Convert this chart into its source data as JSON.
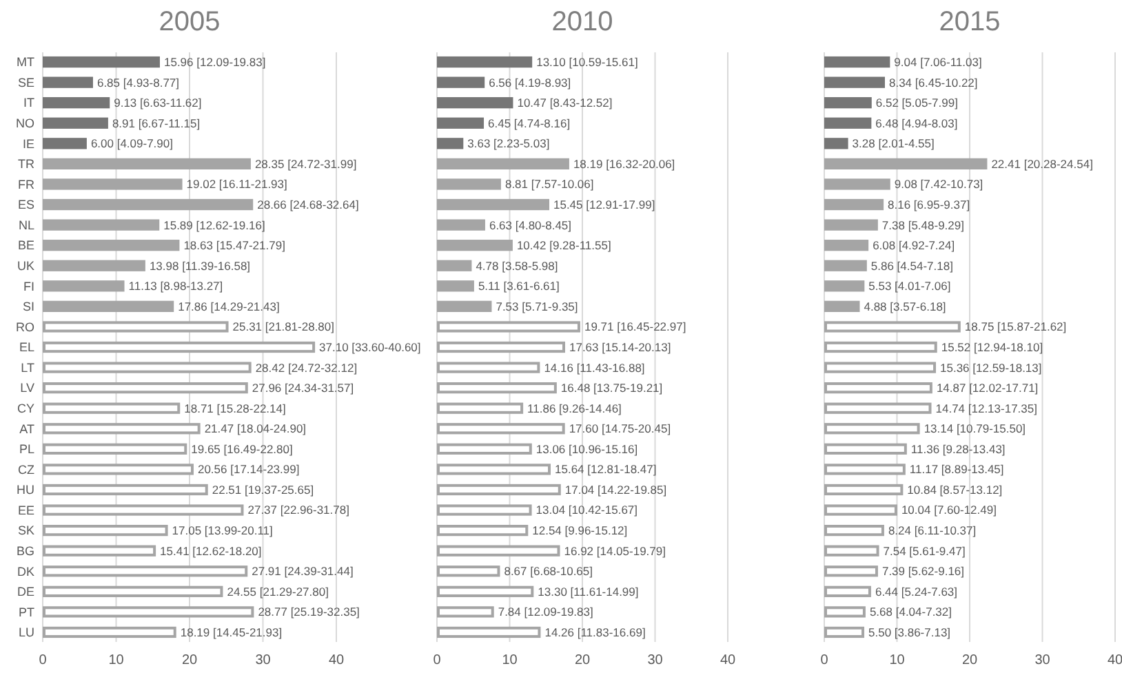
{
  "chart_data": [
    {
      "type": "bar",
      "title": "2005",
      "orientation": "horizontal",
      "grid": "x",
      "xlim": [
        0,
        40
      ],
      "xticks": [
        0,
        10,
        20,
        30,
        40
      ],
      "categories": [
        "MT",
        "SE",
        "IT",
        "NO",
        "IE",
        "TR",
        "FR",
        "ES",
        "NL",
        "BE",
        "UK",
        "FI",
        "SI",
        "RO",
        "EL",
        "LT",
        "LV",
        "CY",
        "AT",
        "PL",
        "CZ",
        "HU",
        "EE",
        "SK",
        "BG",
        "DK",
        "DE",
        "PT",
        "LU"
      ],
      "values": [
        15.96,
        6.85,
        9.13,
        8.91,
        6.0,
        28.35,
        19.02,
        28.66,
        15.89,
        18.63,
        13.98,
        11.13,
        17.86,
        25.31,
        37.1,
        28.42,
        27.96,
        18.71,
        21.47,
        19.65,
        20.56,
        22.51,
        27.37,
        17.05,
        15.41,
        27.91,
        24.55,
        28.77,
        18.19
      ],
      "value_labels": [
        "15.96 [12.09-19.83]",
        "6.85 [4.93-8.77]",
        "9.13 [6.63-11.62]",
        "8.91 [6.67-11.15]",
        "6.00 [4.09-7.90]",
        "28.35 [24.72-31.99]",
        "19.02 [16.11-21.93]",
        "28.66 [24.68-32.64]",
        "15.89 [12.62-19.16]",
        "18.63 [15.47-21.79]",
        "13.98 [11.39-16.58]",
        "11.13 [8.98-13.27]",
        "17.86 [14.29-21.43]",
        "25.31 [21.81-28.80]",
        "37.10 [33.60-40.60]",
        "28.42 [24.72-32.12]",
        "27.96 [24.34-31.57]",
        "18.71 [15.28-22.14]",
        "21.47 [18.04-24.90]",
        "19.65 [16.49-22.80]",
        "20.56 [17.14-23.99]",
        "22.51 [19.37-25.65]",
        "27.37 [22.96-31.78]",
        "17.05 [13.99-20.11]",
        "15.41 [12.62-18.20]",
        "27.91 [24.39-31.44]",
        "24.55 [21.29-27.80]",
        "28.77 [25.19-32.35]",
        "18.19 [14.45-21.93]"
      ],
      "colors": [
        "#767676",
        "#767676",
        "#767676",
        "#767676",
        "#767676",
        "#a5a5a5",
        "#a5a5a5",
        "#a5a5a5",
        "#a5a5a5",
        "#a5a5a5",
        "#a5a5a5",
        "#a5a5a5",
        "#a5a5a5",
        "#ffffff",
        "#ffffff",
        "#ffffff",
        "#ffffff",
        "#ffffff",
        "#ffffff",
        "#ffffff",
        "#ffffff",
        "#ffffff",
        "#ffffff",
        "#ffffff",
        "#ffffff",
        "#ffffff",
        "#ffffff",
        "#ffffff",
        "#ffffff"
      ]
    },
    {
      "type": "bar",
      "title": "2010",
      "orientation": "horizontal",
      "grid": "x",
      "tick_labels": "x",
      "xlim": [
        0,
        40
      ],
      "xticks": [
        0,
        10,
        20,
        30,
        40
      ],
      "categories": [
        null,
        null,
        null,
        null,
        null,
        null,
        null,
        null,
        null,
        null,
        null,
        null,
        null,
        null,
        null,
        null,
        null,
        null,
        null,
        null,
        null,
        null,
        null,
        null,
        null,
        null,
        null,
        null,
        null
      ],
      "values": [
        13.1,
        6.56,
        10.47,
        6.45,
        3.63,
        18.19,
        8.81,
        15.45,
        6.63,
        10.42,
        4.78,
        5.11,
        7.53,
        19.71,
        17.63,
        14.16,
        16.48,
        11.86,
        17.6,
        13.06,
        15.64,
        17.04,
        13.04,
        12.54,
        16.92,
        8.67,
        13.3,
        7.84,
        14.26
      ],
      "value_labels": [
        "13.10 [10.59-15.61]",
        "6.56 [4.19-8.93]",
        "10.47 [8.43-12.52]",
        "6.45 [4.74-8.16]",
        "3.63 [2.23-5.03]",
        "18.19 [16.32-20.06]",
        "8.81 [7.57-10.06]",
        "15.45 [12.91-17.99]",
        "6.63 [4.80-8.45]",
        "10.42 [9.28-11.55]",
        "4.78 [3.58-5.98]",
        "5.11 [3.61-6.61]",
        "7.53 [5.71-9.35]",
        "19.71 [16.45-22.97]",
        "17.63 [15.14-20.13]",
        "14.16 [11.43-16.88]",
        "16.48 [13.75-19.21]",
        "11.86 [9.26-14.46]",
        "17.60 [14.75-20.45]",
        "13.06 [10.96-15.16]",
        "15.64 [12.81-18.47]",
        "17.04 [14.22-19.85]",
        "13.04 [10.42-15.67]",
        "12.54 [9.96-15.12]",
        "16.92 [14.05-19.79]",
        "8.67 [6.68-10.65]",
        "13.30 [11.61-14.99]",
        "7.84 [12.09-19.83]",
        "14.26 [11.83-16.69]"
      ],
      "colors": [
        "#767676",
        "#767676",
        "#767676",
        "#767676",
        "#767676",
        "#a5a5a5",
        "#a5a5a5",
        "#a5a5a5",
        "#a5a5a5",
        "#a5a5a5",
        "#a5a5a5",
        "#a5a5a5",
        "#a5a5a5",
        "#ffffff",
        "#ffffff",
        "#ffffff",
        "#ffffff",
        "#ffffff",
        "#ffffff",
        "#ffffff",
        "#ffffff",
        "#ffffff",
        "#ffffff",
        "#ffffff",
        "#ffffff",
        "#ffffff",
        "#ffffff",
        "#ffffff",
        "#ffffff"
      ]
    },
    {
      "type": "bar",
      "title": "2015",
      "orientation": "horizontal",
      "grid": "x",
      "tick_labels": "x",
      "xlim": [
        0,
        40
      ],
      "xticks": [
        0,
        10,
        20,
        30,
        40
      ],
      "categories": [
        null,
        null,
        null,
        null,
        null,
        null,
        null,
        null,
        null,
        null,
        null,
        null,
        null,
        null,
        null,
        null,
        null,
        null,
        null,
        null,
        null,
        null,
        null,
        null,
        null,
        null,
        null,
        null,
        null
      ],
      "values": [
        9.04,
        8.34,
        6.52,
        6.48,
        3.28,
        22.41,
        9.08,
        8.16,
        7.38,
        6.08,
        5.86,
        5.53,
        4.88,
        18.75,
        15.52,
        15.36,
        14.87,
        14.74,
        13.14,
        11.36,
        11.17,
        10.84,
        10.04,
        8.24,
        7.54,
        7.39,
        6.44,
        5.68,
        5.5
      ],
      "value_labels": [
        "9.04 [7.06-11.03]",
        "8.34 [6.45-10.22]",
        "6.52 [5.05-7.99]",
        "6.48 [4.94-8.03]",
        "3.28 [2.01-4.55]",
        "22.41 [20.28-24.54]",
        "9.08 [7.42-10.73]",
        "8.16 [6.95-9.37]",
        "7.38 [5.48-9.29]",
        "6.08 [4.92-7.24]",
        "5.86 [4.54-7.18]",
        "5.53 [4.01-7.06]",
        "4.88 [3.57-6.18]",
        "18.75 [15.87-21.62]",
        "15.52 [12.94-18.10]",
        "15.36 [12.59-18.13]",
        "14.87 [12.02-17.71]",
        "14.74 [12.13-17.35]",
        "13.14 [10.79-15.50]",
        "11.36 [9.28-13.43]",
        "11.17 [8.89-13.45]",
        "10.84 [8.57-13.12]",
        "10.04 [7.60-12.49]",
        "8.24 [6.11-10.37]",
        "7.54 [5.61-9.47]",
        "7.39 [5.62-9.16]",
        "6.44 [5.24-7.63]",
        "5.68 [4.04-7.32]",
        "5.50 [3.86-7.13]"
      ],
      "colors": [
        "#767676",
        "#767676",
        "#767676",
        "#767676",
        "#767676",
        "#a5a5a5",
        "#a5a5a5",
        "#a5a5a5",
        "#a5a5a5",
        "#a5a5a5",
        "#a5a5a5",
        "#a5a5a5",
        "#a5a5a5",
        "#ffffff",
        "#ffffff",
        "#ffffff",
        "#ffffff",
        "#ffffff",
        "#ffffff",
        "#ffffff",
        "#ffffff",
        "#ffffff",
        "#ffffff",
        "#ffffff",
        "#ffffff",
        "#ffffff",
        "#ffffff",
        "#ffffff",
        "#ffffff"
      ]
    }
  ]
}
